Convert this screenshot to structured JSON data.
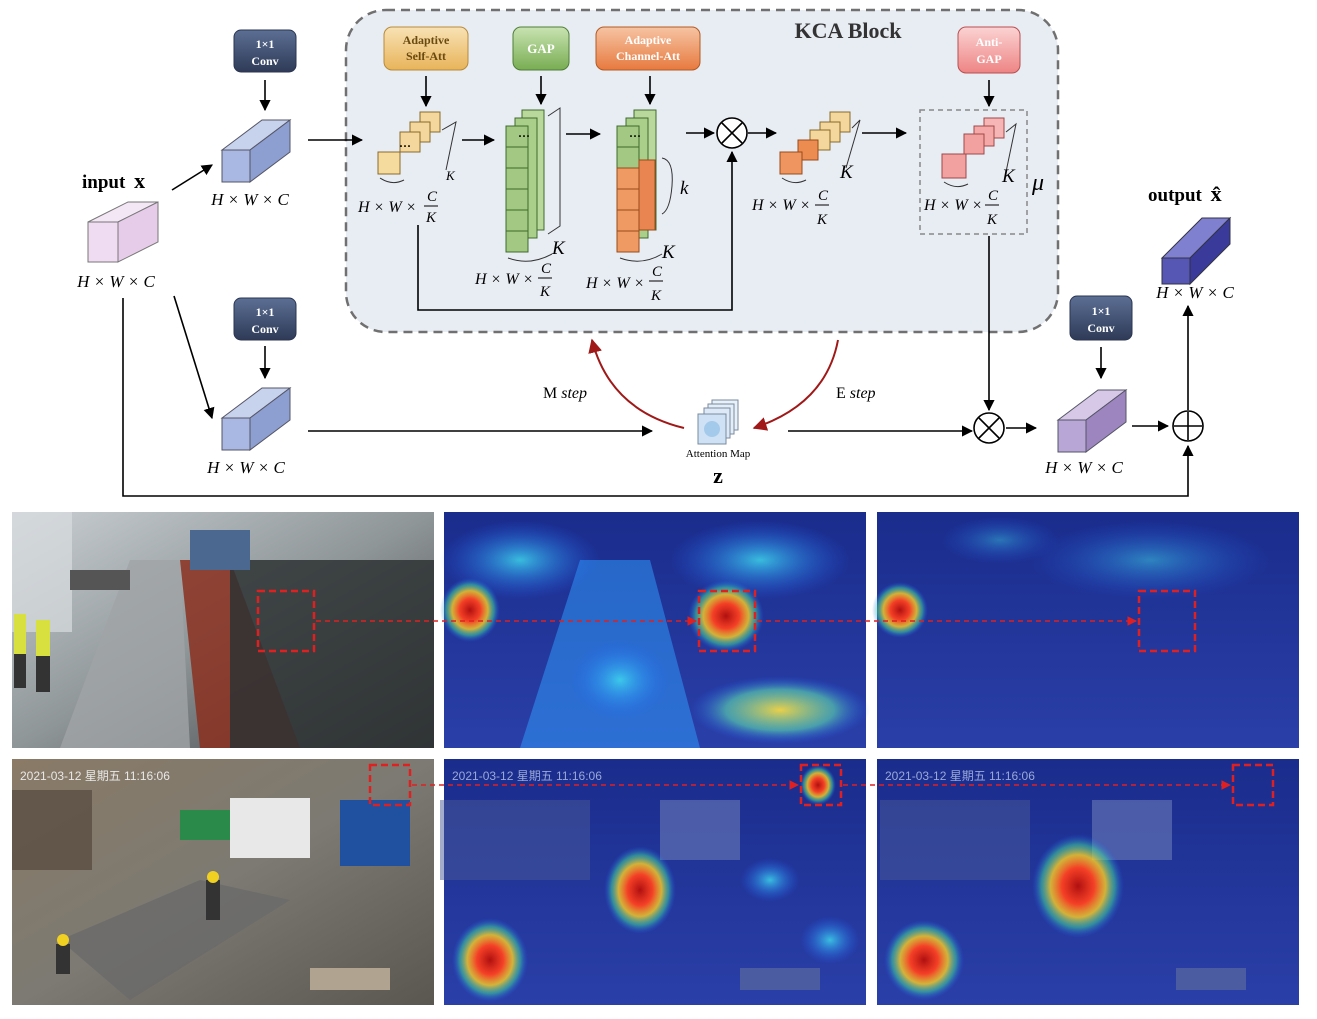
{
  "labels": {
    "input": "input",
    "input_var": "x",
    "output": "output",
    "output_var": "x̂",
    "block_title": "KCA Block",
    "dims_hwc": "H × W × C",
    "dims_hw": "H × W ×",
    "frac_num": "C",
    "frac_den": "K",
    "k_upper": "K",
    "k_lower": "k",
    "mu": "μ",
    "z": "z",
    "attention_map": "Attention Map",
    "m_step_a": "M",
    "m_step_b": "step",
    "e_step_a": "E",
    "e_step_b": "step"
  },
  "modules": {
    "conv_top": [
      "1×1",
      "Conv"
    ],
    "conv_bottom": [
      "1×1",
      "Conv"
    ],
    "conv_right": [
      "1×1",
      "Conv"
    ],
    "adaptive_self_att": [
      "Adaptive",
      "Self-Att"
    ],
    "gap": [
      "GAP"
    ],
    "adaptive_channel_att": [
      "Adaptive",
      "Channel-Att"
    ],
    "anti_gap": [
      "Anti-",
      "GAP"
    ]
  },
  "image_overlays": {
    "timestamp_row2": "2021-03-12 星期五 11:16:06"
  },
  "colors": {
    "conv_box": "#3b4a6b",
    "adaptive_self_att": "#f2c77a",
    "gap": "#8fbf6a",
    "adaptive_channel_att": "#ef9560",
    "anti_gap": "#f29a9a",
    "kca_bg": "#e8edf4",
    "em_arrow": "#a01818",
    "highlight_box": "#e02020"
  }
}
